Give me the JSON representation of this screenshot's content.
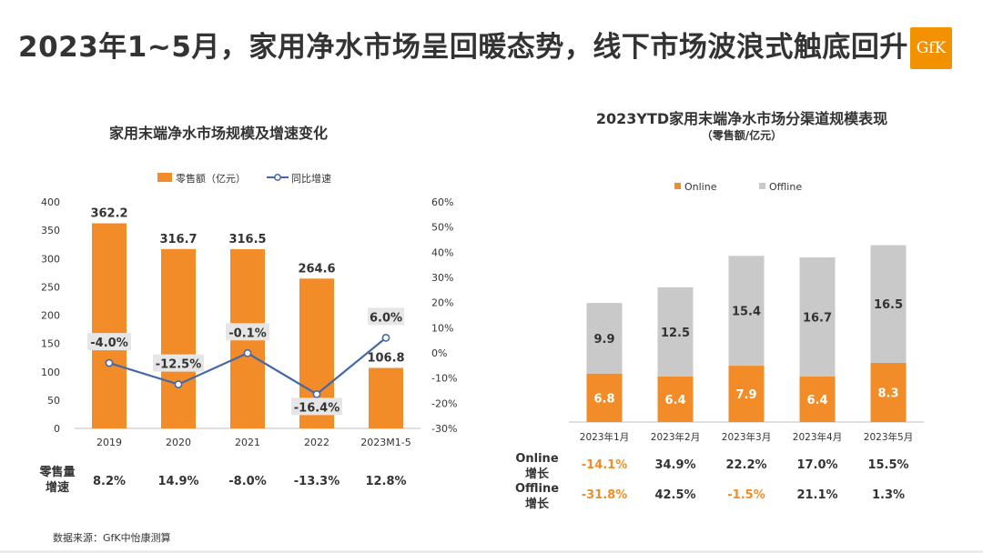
{
  "title": "2023年1~5月，家用净水市场呈回暖态势，线下市场波浪式触底回升",
  "logo_text": "GfK",
  "source_note": "数据来源：GfK中怡康测算",
  "colors": {
    "orange": "#f28c28",
    "gray": "#c9c9c9",
    "line": "#4468a8",
    "neg_highlight": "#f28c28",
    "text": "#333333"
  },
  "chart_data": [
    {
      "type": "bar",
      "title": "家用末端净水市场规模及增速变化",
      "categories": [
        "2019",
        "2020",
        "2021",
        "2022",
        "2023M1-5"
      ],
      "series": [
        {
          "name": "零售额（亿元）",
          "type": "bar",
          "axis": "left",
          "values": [
            362.2,
            316.7,
            316.5,
            264.6,
            106.8
          ],
          "labels": [
            "362.2",
            "316.7",
            "316.5",
            "264.6",
            "106.8"
          ]
        },
        {
          "name": "同比增速",
          "type": "line",
          "axis": "right",
          "values": [
            -4.0,
            -12.5,
            -0.1,
            -16.4,
            6.0
          ],
          "labels": [
            "-4.0%",
            "-12.5%",
            "-0.1%",
            "-16.4%",
            "6.0%"
          ]
        }
      ],
      "ylim_left": [
        0,
        400
      ],
      "yticks_left": [
        "0",
        "50",
        "100",
        "150",
        "200",
        "250",
        "300",
        "350",
        "400"
      ],
      "ylim_right": [
        -30,
        60
      ],
      "yticks_right": [
        "-30%",
        "-20%",
        "-10%",
        "0%",
        "10%",
        "20%",
        "30%",
        "40%",
        "50%",
        "60%"
      ],
      "legend_position": "top-center",
      "table": {
        "row_label": "零售量增速",
        "values": [
          "8.2%",
          "14.9%",
          "-8.0%",
          "-13.3%",
          "12.8%"
        ]
      }
    },
    {
      "type": "bar",
      "stacked": true,
      "title": "2023YTD家用末端净水市场分渠道规模表现",
      "subtitle": "（零售额/亿元）",
      "categories": [
        "2023年1月",
        "2023年2月",
        "2023年3月",
        "2023年4月",
        "2023年5月"
      ],
      "series": [
        {
          "name": "Online",
          "values": [
            6.8,
            6.4,
            7.9,
            6.4,
            8.3
          ],
          "labels": [
            "6.8",
            "6.4",
            "7.9",
            "6.4",
            "8.3"
          ]
        },
        {
          "name": "Offline",
          "values": [
            9.9,
            12.5,
            15.4,
            16.7,
            16.5
          ],
          "labels": [
            "9.9",
            "12.5",
            "15.4",
            "16.7",
            "16.5"
          ]
        }
      ],
      "legend_position": "top-center",
      "table": {
        "rows": [
          {
            "label": "Online增长",
            "values": [
              "-14.1%",
              "34.9%",
              "22.2%",
              "17.0%",
              "15.5%"
            ]
          },
          {
            "label": "Offline增长",
            "values": [
              "-31.8%",
              "42.5%",
              "-1.5%",
              "21.1%",
              "1.3%"
            ]
          }
        ]
      }
    }
  ]
}
